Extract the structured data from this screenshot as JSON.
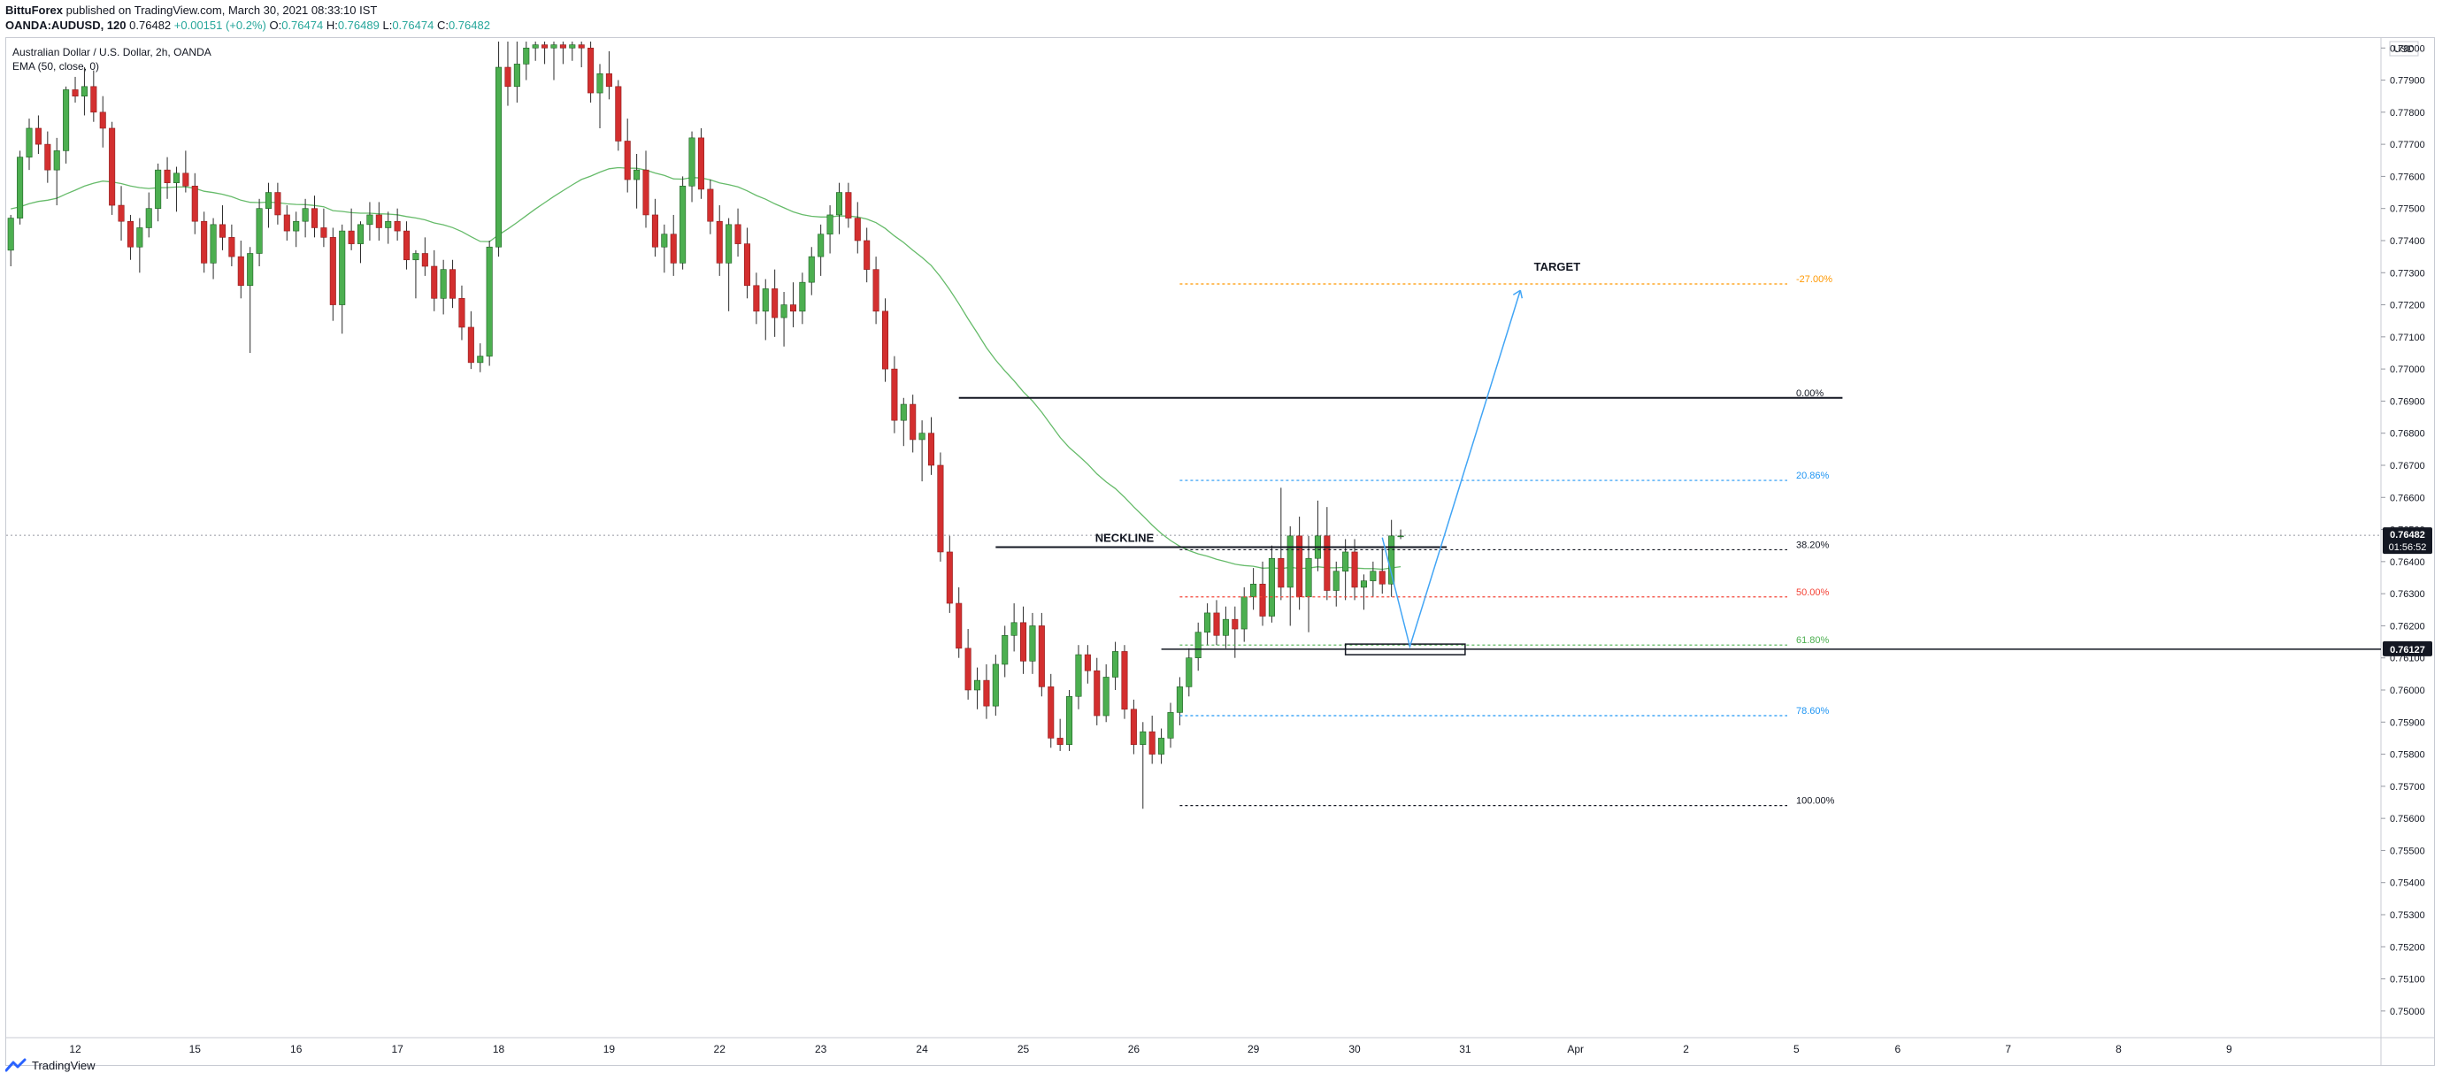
{
  "header": {
    "author": "BittuForex",
    "published": "published on TradingView.com, March 30, 2021 08:33:10 IST",
    "symbol_line": "OANDA:AUDUSD, 120",
    "last": "0.76482",
    "change": "+0.00151 (+0.2%)",
    "o_label": "O:",
    "o": "0.76474",
    "h_label": "H:",
    "h": "0.76489",
    "l_label": "L:",
    "l": "0.76474",
    "c_label": "C:",
    "c": "0.76482"
  },
  "legend": {
    "title": "Australian Dollar / U.S. Dollar, 2h, OANDA",
    "indicator": "EMA (50, close, 0)"
  },
  "footer": {
    "brand": "TradingView"
  },
  "colors": {
    "up": "#26a69a",
    "up_fill": "#4caf50",
    "down": "#ef5350",
    "down_fill": "#d32f2f",
    "ema": "#66bb6a",
    "grid": "#eef0f3",
    "axis_text": "#131722"
  },
  "chart_data": {
    "type": "candlestick",
    "currency": "USD",
    "ylim": [
      0.7495,
      0.7802
    ],
    "y_ticks": [
      0.78,
      0.779,
      0.778,
      0.777,
      0.776,
      0.775,
      0.774,
      0.773,
      0.772,
      0.771,
      0.77,
      0.769,
      0.768,
      0.767,
      0.766,
      0.765,
      0.764,
      0.763,
      0.762,
      0.761,
      0.76,
      0.759,
      0.758,
      0.757,
      0.756,
      0.755,
      0.754,
      0.753,
      0.752,
      0.751,
      0.75
    ],
    "y_tick_labels": [
      "0.78000",
      "0.77900",
      "0.77800",
      "0.77700",
      "0.77600",
      "0.77500",
      "0.77400",
      "0.77300",
      "0.77200",
      "0.77100",
      "0.77000",
      "0.76900",
      "0.76800",
      "0.76700",
      "0.76600",
      "0.76500",
      "0.76400",
      "0.76300",
      "0.76200",
      "0.76100",
      "0.76000",
      "0.75900",
      "0.75800",
      "0.75700",
      "0.75600",
      "0.75500",
      "0.75400",
      "0.75300",
      "0.75200",
      "0.75100",
      "0.75000"
    ],
    "x_ticks": [
      "12",
      "15",
      "16",
      "17",
      "18",
      "19",
      "22",
      "23",
      "24",
      "25",
      "26",
      "29",
      "30",
      "31",
      "Apr",
      "2",
      "5",
      "6",
      "7",
      "8",
      "9"
    ],
    "x_tick_index": [
      7,
      20,
      31,
      42,
      53,
      65,
      77,
      88,
      99,
      110,
      122,
      135,
      146,
      158,
      170,
      182,
      194,
      205,
      217,
      229,
      241
    ],
    "total_bars": 258,
    "candles": [
      [
        0.7737,
        0.7748,
        0.7732,
        0.7747
      ],
      [
        0.7747,
        0.7768,
        0.7745,
        0.7766
      ],
      [
        0.7766,
        0.7778,
        0.7762,
        0.7775
      ],
      [
        0.7775,
        0.7779,
        0.7767,
        0.777
      ],
      [
        0.777,
        0.7774,
        0.7758,
        0.7762
      ],
      [
        0.7762,
        0.7772,
        0.7751,
        0.7768
      ],
      [
        0.7768,
        0.7788,
        0.7764,
        0.7787
      ],
      [
        0.7787,
        0.7791,
        0.7783,
        0.7785
      ],
      [
        0.7785,
        0.7794,
        0.7779,
        0.7788
      ],
      [
        0.7788,
        0.7793,
        0.7777,
        0.778
      ],
      [
        0.778,
        0.7785,
        0.7769,
        0.7775
      ],
      [
        0.7775,
        0.7777,
        0.7748,
        0.7751
      ],
      [
        0.7751,
        0.7757,
        0.774,
        0.7746
      ],
      [
        0.7746,
        0.7748,
        0.7734,
        0.7738
      ],
      [
        0.7738,
        0.7747,
        0.773,
        0.7744
      ],
      [
        0.7744,
        0.7755,
        0.7741,
        0.775
      ],
      [
        0.775,
        0.7764,
        0.7746,
        0.7762
      ],
      [
        0.7762,
        0.7766,
        0.7753,
        0.7758
      ],
      [
        0.7758,
        0.7763,
        0.7749,
        0.7761
      ],
      [
        0.7761,
        0.7768,
        0.7755,
        0.7757
      ],
      [
        0.7757,
        0.7761,
        0.7742,
        0.7746
      ],
      [
        0.7746,
        0.7749,
        0.773,
        0.7733
      ],
      [
        0.7733,
        0.7747,
        0.7728,
        0.7745
      ],
      [
        0.7745,
        0.7751,
        0.7737,
        0.7741
      ],
      [
        0.7741,
        0.7745,
        0.7732,
        0.7735
      ],
      [
        0.7735,
        0.774,
        0.7722,
        0.7726
      ],
      [
        0.7726,
        0.7738,
        0.7705,
        0.7736
      ],
      [
        0.7736,
        0.7753,
        0.7732,
        0.775
      ],
      [
        0.775,
        0.7758,
        0.7744,
        0.7755
      ],
      [
        0.7755,
        0.7758,
        0.7745,
        0.7748
      ],
      [
        0.7748,
        0.7751,
        0.774,
        0.7743
      ],
      [
        0.7743,
        0.7749,
        0.7738,
        0.7746
      ],
      [
        0.7746,
        0.7753,
        0.7741,
        0.775
      ],
      [
        0.775,
        0.7754,
        0.7741,
        0.7744
      ],
      [
        0.7744,
        0.775,
        0.7738,
        0.7741
      ],
      [
        0.7741,
        0.7744,
        0.7715,
        0.772
      ],
      [
        0.772,
        0.7745,
        0.7711,
        0.7743
      ],
      [
        0.7743,
        0.775,
        0.7737,
        0.7739
      ],
      [
        0.7739,
        0.7746,
        0.7733,
        0.7745
      ],
      [
        0.7745,
        0.7752,
        0.774,
        0.7748
      ],
      [
        0.7748,
        0.7752,
        0.774,
        0.7744
      ],
      [
        0.7744,
        0.7749,
        0.7739,
        0.7746
      ],
      [
        0.7746,
        0.775,
        0.774,
        0.7743
      ],
      [
        0.7743,
        0.7746,
        0.7731,
        0.7734
      ],
      [
        0.7734,
        0.7737,
        0.7722,
        0.7736
      ],
      [
        0.7736,
        0.7741,
        0.7729,
        0.7732
      ],
      [
        0.7732,
        0.7737,
        0.7718,
        0.7722
      ],
      [
        0.7722,
        0.7734,
        0.7717,
        0.7731
      ],
      [
        0.7731,
        0.7734,
        0.7719,
        0.7722
      ],
      [
        0.7722,
        0.7726,
        0.7709,
        0.7713
      ],
      [
        0.7713,
        0.7718,
        0.77,
        0.7702
      ],
      [
        0.7702,
        0.7708,
        0.7699,
        0.7704
      ],
      [
        0.7704,
        0.774,
        0.7701,
        0.7738
      ],
      [
        0.7738,
        0.7802,
        0.7735,
        0.7794
      ],
      [
        0.7794,
        0.7802,
        0.7782,
        0.7788
      ],
      [
        0.7788,
        0.7802,
        0.7783,
        0.7795
      ],
      [
        0.7795,
        0.7802,
        0.779,
        0.78
      ],
      [
        0.78,
        0.7802,
        0.7796,
        0.7801
      ],
      [
        0.7801,
        0.7802,
        0.7795,
        0.78
      ],
      [
        0.78,
        0.7802,
        0.779,
        0.7801
      ],
      [
        0.7801,
        0.7802,
        0.7795,
        0.78
      ],
      [
        0.78,
        0.7802,
        0.7796,
        0.7801
      ],
      [
        0.7801,
        0.7802,
        0.7794,
        0.78
      ],
      [
        0.78,
        0.7802,
        0.7783,
        0.7786
      ],
      [
        0.7786,
        0.7795,
        0.7775,
        0.7792
      ],
      [
        0.7792,
        0.7799,
        0.7784,
        0.7788
      ],
      [
        0.7788,
        0.779,
        0.7768,
        0.7771
      ],
      [
        0.7771,
        0.7778,
        0.7755,
        0.7759
      ],
      [
        0.7759,
        0.7767,
        0.775,
        0.7762
      ],
      [
        0.7762,
        0.7768,
        0.7744,
        0.7748
      ],
      [
        0.7748,
        0.7753,
        0.7735,
        0.7738
      ],
      [
        0.7738,
        0.7745,
        0.773,
        0.7742
      ],
      [
        0.7742,
        0.7748,
        0.7729,
        0.7733
      ],
      [
        0.7733,
        0.776,
        0.7731,
        0.7757
      ],
      [
        0.7757,
        0.7774,
        0.7752,
        0.7772
      ],
      [
        0.7772,
        0.7775,
        0.7753,
        0.7756
      ],
      [
        0.7756,
        0.7759,
        0.7742,
        0.7746
      ],
      [
        0.7746,
        0.7751,
        0.7729,
        0.7733
      ],
      [
        0.7733,
        0.7747,
        0.7718,
        0.7745
      ],
      [
        0.7745,
        0.775,
        0.7735,
        0.7739
      ],
      [
        0.7739,
        0.7744,
        0.7722,
        0.7726
      ],
      [
        0.7726,
        0.773,
        0.7714,
        0.7718
      ],
      [
        0.7718,
        0.7728,
        0.7709,
        0.7725
      ],
      [
        0.7725,
        0.7731,
        0.771,
        0.7716
      ],
      [
        0.7716,
        0.7724,
        0.7707,
        0.772
      ],
      [
        0.772,
        0.7727,
        0.7713,
        0.7718
      ],
      [
        0.7718,
        0.773,
        0.7714,
        0.7727
      ],
      [
        0.7727,
        0.7738,
        0.7723,
        0.7735
      ],
      [
        0.7735,
        0.7745,
        0.7729,
        0.7742
      ],
      [
        0.7742,
        0.7751,
        0.7736,
        0.7748
      ],
      [
        0.7748,
        0.7758,
        0.7742,
        0.7755
      ],
      [
        0.7755,
        0.7758,
        0.7744,
        0.7747
      ],
      [
        0.7747,
        0.7752,
        0.7736,
        0.774
      ],
      [
        0.774,
        0.7744,
        0.7727,
        0.7731
      ],
      [
        0.7731,
        0.7735,
        0.7714,
        0.7718
      ],
      [
        0.7718,
        0.7722,
        0.7696,
        0.77
      ],
      [
        0.77,
        0.7704,
        0.768,
        0.7684
      ],
      [
        0.7684,
        0.7691,
        0.7676,
        0.7689
      ],
      [
        0.7689,
        0.7692,
        0.7674,
        0.7678
      ],
      [
        0.7678,
        0.7684,
        0.7665,
        0.768
      ],
      [
        0.768,
        0.7685,
        0.7667,
        0.767
      ],
      [
        0.767,
        0.7674,
        0.764,
        0.7643
      ],
      [
        0.7643,
        0.7648,
        0.7624,
        0.7627
      ],
      [
        0.7627,
        0.7632,
        0.761,
        0.7613
      ],
      [
        0.7613,
        0.7619,
        0.7597,
        0.76
      ],
      [
        0.76,
        0.7607,
        0.7594,
        0.7603
      ],
      [
        0.7603,
        0.7608,
        0.7591,
        0.7595
      ],
      [
        0.7595,
        0.7611,
        0.7592,
        0.7608
      ],
      [
        0.7608,
        0.762,
        0.7604,
        0.7617
      ],
      [
        0.7617,
        0.7627,
        0.7612,
        0.7621
      ],
      [
        0.7621,
        0.7626,
        0.7605,
        0.7609
      ],
      [
        0.7609,
        0.7624,
        0.7605,
        0.762
      ],
      [
        0.762,
        0.7624,
        0.7598,
        0.7601
      ],
      [
        0.7601,
        0.7605,
        0.7582,
        0.7585
      ],
      [
        0.7585,
        0.7591,
        0.7581,
        0.7583
      ],
      [
        0.7583,
        0.76,
        0.7581,
        0.7598
      ],
      [
        0.7598,
        0.7614,
        0.7594,
        0.7611
      ],
      [
        0.7611,
        0.7614,
        0.7602,
        0.7606
      ],
      [
        0.7606,
        0.761,
        0.7589,
        0.7592
      ],
      [
        0.7592,
        0.7608,
        0.759,
        0.7604
      ],
      [
        0.7604,
        0.7615,
        0.76,
        0.7612
      ],
      [
        0.7612,
        0.7614,
        0.7591,
        0.7594
      ],
      [
        0.7594,
        0.7597,
        0.758,
        0.7583
      ],
      [
        0.7583,
        0.759,
        0.7563,
        0.7587
      ],
      [
        0.7587,
        0.7592,
        0.7577,
        0.758
      ],
      [
        0.758,
        0.7588,
        0.7577,
        0.7585
      ],
      [
        0.7585,
        0.7596,
        0.7582,
        0.7593
      ],
      [
        0.7593,
        0.7604,
        0.7589,
        0.7601
      ],
      [
        0.7601,
        0.7613,
        0.7598,
        0.761
      ],
      [
        0.761,
        0.7621,
        0.7606,
        0.7618
      ],
      [
        0.7618,
        0.7627,
        0.7614,
        0.7624
      ],
      [
        0.7624,
        0.7628,
        0.7614,
        0.7617
      ],
      [
        0.7617,
        0.7626,
        0.7613,
        0.7622
      ],
      [
        0.7622,
        0.7626,
        0.761,
        0.7619
      ],
      [
        0.7619,
        0.7632,
        0.7615,
        0.7629
      ],
      [
        0.7629,
        0.7638,
        0.7625,
        0.7633
      ],
      [
        0.7633,
        0.764,
        0.762,
        0.7623
      ],
      [
        0.7623,
        0.7645,
        0.7621,
        0.7641
      ],
      [
        0.7641,
        0.7663,
        0.7628,
        0.7632
      ],
      [
        0.7632,
        0.7651,
        0.762,
        0.7648
      ],
      [
        0.7648,
        0.7654,
        0.7625,
        0.7629
      ],
      [
        0.7629,
        0.7648,
        0.7618,
        0.7641
      ],
      [
        0.7641,
        0.7659,
        0.7637,
        0.7648
      ],
      [
        0.7648,
        0.7657,
        0.7628,
        0.7631
      ],
      [
        0.7631,
        0.764,
        0.7626,
        0.7637
      ],
      [
        0.7637,
        0.7647,
        0.7628,
        0.7643
      ],
      [
        0.7643,
        0.7647,
        0.7628,
        0.7632
      ],
      [
        0.7632,
        0.7636,
        0.7625,
        0.7634
      ],
      [
        0.7634,
        0.764,
        0.7629,
        0.7637
      ],
      [
        0.7637,
        0.7644,
        0.763,
        0.7633
      ],
      [
        0.7633,
        0.7653,
        0.7629,
        0.7648
      ],
      [
        0.7648,
        0.765,
        0.7647,
        0.7648
      ]
    ],
    "last_price": "0.76482",
    "countdown": "01:56:52",
    "marked_price": "0.76127",
    "annotations": {
      "target": "TARGET",
      "neckline": "NECKLINE"
    },
    "fib_levels": [
      {
        "label": "-27.00%",
        "value": 0.77265,
        "color": "#ff9800"
      },
      {
        "label": "0.00%",
        "value": 0.7691,
        "color": "#131722"
      },
      {
        "label": "20.86%",
        "value": 0.76653,
        "color": "#2196f3"
      },
      {
        "label": "38.20%",
        "value": 0.76437,
        "color": "#131722"
      },
      {
        "label": "50.00%",
        "value": 0.7629,
        "color": "#f44336"
      },
      {
        "label": "61.80%",
        "value": 0.7614,
        "color": "#4caf50"
      },
      {
        "label": "78.60%",
        "value": 0.7592,
        "color": "#2196f3"
      },
      {
        "label": "100.00%",
        "value": 0.7564,
        "color": "#131722"
      }
    ]
  }
}
